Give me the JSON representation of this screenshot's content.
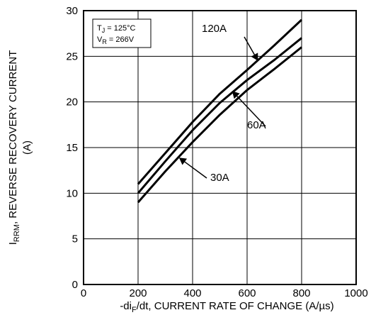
{
  "chart_data": {
    "type": "line",
    "title": "",
    "xlabel": {
      "prefix": "-di",
      "sub": "F",
      "rest": "/dt, CURRENT RATE OF CHANGE (A/µs)"
    },
    "ylabel": {
      "prefix": "I",
      "sub": "RRM",
      "rest": ", REVERSE RECOVERY CURRENT",
      "line2": "(A)"
    },
    "xlim": [
      0,
      1000
    ],
    "ylim": [
      0,
      30
    ],
    "xticks": [
      "0",
      "200",
      "400",
      "600",
      "800",
      "1000"
    ],
    "yticks": [
      "0",
      "5",
      "10",
      "15",
      "20",
      "25",
      "30"
    ],
    "grid": true,
    "conditions": {
      "tj": {
        "main": "T",
        "sub": "J",
        "rest": " = 125°C"
      },
      "vr": {
        "main": "V",
        "sub": "R",
        "rest": " = 266V"
      }
    },
    "series": [
      {
        "name": "120A",
        "x": [
          200,
          300,
          400,
          500,
          600,
          700,
          800
        ],
        "y": [
          11,
          14.4,
          17.8,
          20.9,
          23.5,
          26.2,
          29
        ]
      },
      {
        "name": "60A",
        "x": [
          200,
          300,
          400,
          500,
          600,
          700,
          800
        ],
        "y": [
          10,
          13.5,
          16.9,
          19.9,
          22.4,
          24.6,
          27
        ]
      },
      {
        "name": "30A",
        "x": [
          200,
          300,
          400,
          500,
          600,
          700,
          800
        ],
        "y": [
          9,
          12.4,
          15.6,
          18.6,
          21.3,
          23.6,
          26
        ]
      }
    ]
  }
}
